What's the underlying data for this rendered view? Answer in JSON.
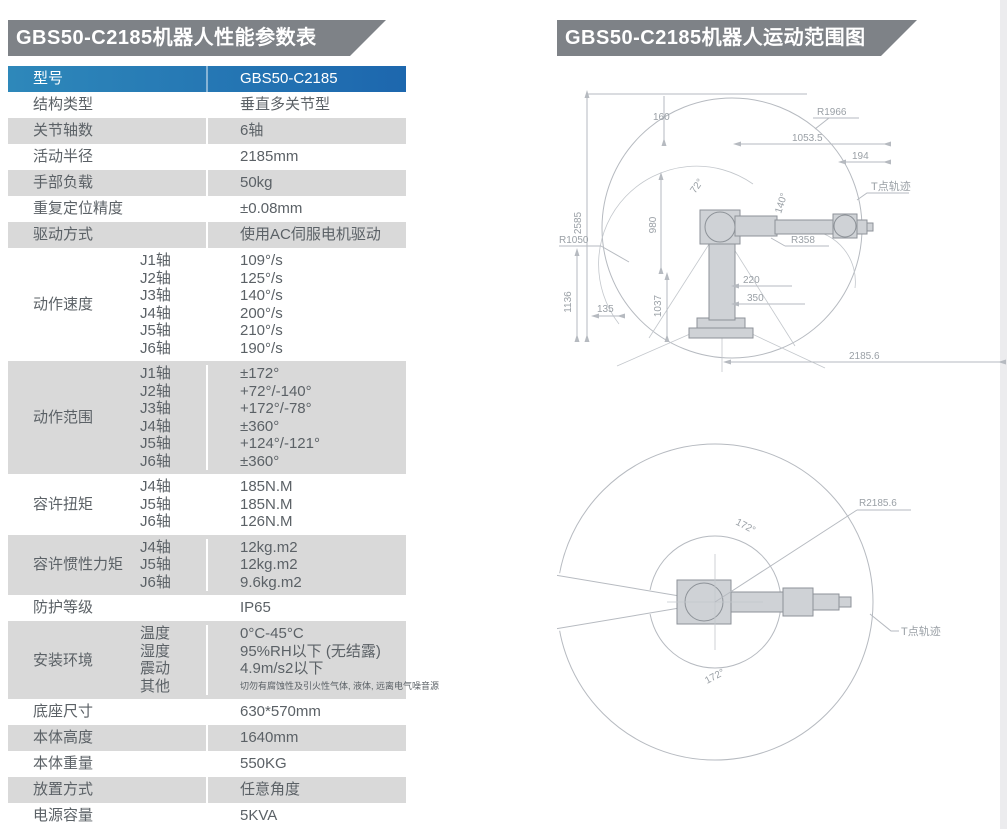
{
  "colors": {
    "banner_gray": "#7e8287",
    "header_blue_left": "#2e88ba",
    "header_blue_right": "#1d67ae",
    "row_stripe_gray": "#d9d9d9",
    "bottom_bar_blue": "#1a5fa6",
    "body_text": "#5b6166",
    "drawing_line": "#b6bac0"
  },
  "left_panel": {
    "title": "GBS50-C2185机器人性能参数表",
    "table": {
      "header": {
        "label": "型号",
        "value": "GBS50-C2185"
      },
      "rows": [
        {
          "label": "结构类型",
          "value": "垂直多关节型",
          "shade": false
        },
        {
          "label": "关节轴数",
          "value": "6轴",
          "shade": true
        },
        {
          "label": "活动半径",
          "value": "2185mm",
          "shade": false
        },
        {
          "label": "手部负载",
          "value": "50kg",
          "shade": true
        },
        {
          "label": "重复定位精度",
          "value": "±0.08mm",
          "shade": false
        },
        {
          "label": "驱动方式",
          "value": "使用AC伺服电机驱动",
          "shade": true
        },
        {
          "label": "动作速度",
          "shade": false,
          "subs": [
            {
              "k": "J1轴",
              "v": "109°/s"
            },
            {
              "k": "J2轴",
              "v": "125°/s"
            },
            {
              "k": "J3轴",
              "v": "140°/s"
            },
            {
              "k": "J4轴",
              "v": "200°/s"
            },
            {
              "k": "J5轴",
              "v": "210°/s"
            },
            {
              "k": "J6轴",
              "v": "190°/s"
            }
          ]
        },
        {
          "label": "动作范围",
          "shade": true,
          "subs": [
            {
              "k": "J1轴",
              "v": "±172°"
            },
            {
              "k": "J2轴",
              "v": "+72°/-140°"
            },
            {
              "k": "J3轴",
              "v": "+172°/-78°"
            },
            {
              "k": "J4轴",
              "v": "±360°"
            },
            {
              "k": "J5轴",
              "v": "+124°/-121°"
            },
            {
              "k": "J6轴",
              "v": "±360°"
            }
          ]
        },
        {
          "label": "容许扭矩",
          "shade": false,
          "subs": [
            {
              "k": "J4轴",
              "v": "185N.M"
            },
            {
              "k": "J5轴",
              "v": "185N.M"
            },
            {
              "k": "J6轴",
              "v": "126N.M"
            }
          ]
        },
        {
          "label": "容许惯性力矩",
          "shade": true,
          "subs": [
            {
              "k": "J4轴",
              "v": "12kg.m2"
            },
            {
              "k": "J5轴",
              "v": "12kg.m2"
            },
            {
              "k": "J6轴",
              "v": "9.6kg.m2"
            }
          ]
        },
        {
          "label": "防护等级",
          "value": "IP65",
          "shade": false
        },
        {
          "label": "安装环境",
          "shade": true,
          "subs": [
            {
              "k": "温度",
              "v": "0°C-45°C"
            },
            {
              "k": "湿度",
              "v": "95%RH以下 (无结露)"
            },
            {
              "k": "震动",
              "v": "4.9m/s2以下"
            },
            {
              "k": "其他",
              "v": "切勿有腐蚀性及引火性气体, 液体, 远离电气噪音源",
              "small": true
            }
          ]
        },
        {
          "label": "底座尺寸",
          "value": "630*570mm",
          "shade": false
        },
        {
          "label": "本体高度",
          "value": "1640mm",
          "shade": true
        },
        {
          "label": "本体重量",
          "value": "550KG",
          "shade": false
        },
        {
          "label": "放置方式",
          "value": "任意角度",
          "shade": true
        },
        {
          "label": "电源容量",
          "value": "5KVA",
          "shade": false
        }
      ]
    }
  },
  "right_panel": {
    "title": "GBS50-C2185机器人运动范围图",
    "side_view": {
      "labels": {
        "dim_2585": "2585",
        "dim_160": "160",
        "dim_1053_5": "1053.5",
        "dim_194": "194",
        "r1966": "R1966",
        "dim_980": "980",
        "angle_72": "72°",
        "angle_140": "140°",
        "r1050": "R1050",
        "r358": "R358",
        "dim_220": "220",
        "dim_350": "350",
        "dim_135": "135",
        "dim_1136": "1136",
        "dim_1037": "1037",
        "dim_2185_6": "2185.6",
        "trace": "T点轨迹"
      }
    },
    "top_view": {
      "labels": {
        "r2185_6": "R2185.6",
        "angle_top": "172°",
        "angle_bottom": "172°",
        "trace": "T点轨迹"
      }
    }
  }
}
